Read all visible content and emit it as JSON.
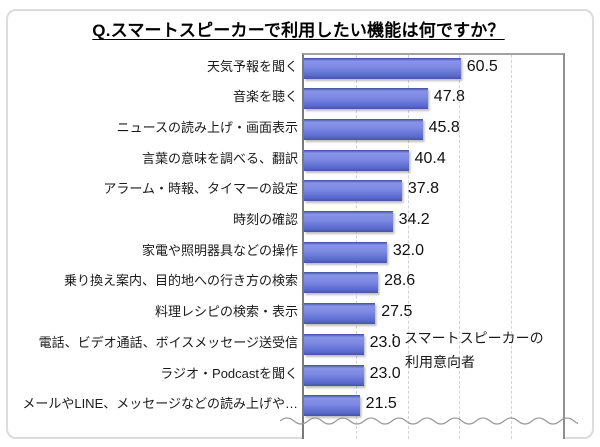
{
  "title": "Q.スマートスピーカーで利用したい機能は何ですか？",
  "legend": {
    "line1": "：スマートスピーカーの",
    "line2": "利用意向者"
  },
  "chart_data": {
    "type": "bar",
    "orientation": "horizontal",
    "title": "Q.スマートスピーカーで利用したい機能は何ですか？",
    "categories": [
      "天気予報を聞く",
      "音楽を聴く",
      "ニュースの読み上げ・画面表示",
      "言葉の意味を調べる、翻訳",
      "アラーム・時報、タイマーの設定",
      "時刻の確認",
      "家電や照明器具などの操作",
      "乗り換え案内、目的地への行き方の検索",
      "料理レシピの検索・表示",
      "電話、ビデオ通話、ボイスメッセージ送受信",
      "ラジオ・Podcastを聞く",
      "メールやLINE、メッセージなどの読み上げや…"
    ],
    "values": [
      60.5,
      47.8,
      45.8,
      40.4,
      37.8,
      34.2,
      32.0,
      28.6,
      27.5,
      23.0,
      23.0,
      21.5
    ],
    "xlim": [
      0,
      100
    ],
    "gridlines": [
      20,
      40,
      60,
      80
    ],
    "grid_style": "dashed",
    "legend_note": "：スマートスピーカーの利用意向者",
    "bar_color": "#6a7ad8",
    "value_label_decimals": 1,
    "truncated_bottom": true
  }
}
